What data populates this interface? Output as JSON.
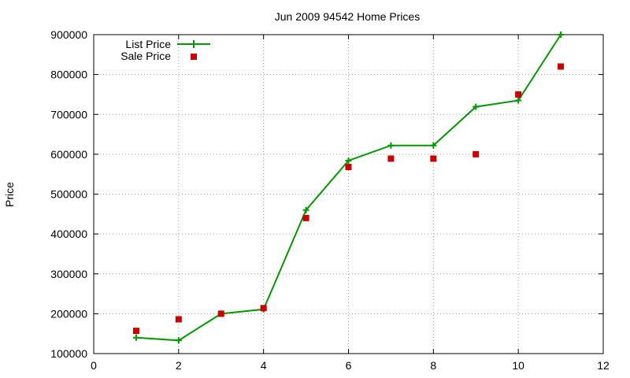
{
  "chart_data": {
    "type": "line",
    "title": "Jun 2009 94542 Home Prices",
    "xlabel": "",
    "ylabel": "Price",
    "xlim": [
      0,
      12
    ],
    "ylim": [
      100000,
      900000
    ],
    "xticks": [
      "0",
      "2",
      "4",
      "6",
      "8",
      "10",
      "12"
    ],
    "yticks": [
      "100000",
      "200000",
      "300000",
      "400000",
      "500000",
      "600000",
      "700000",
      "800000",
      "900000"
    ],
    "grid": true,
    "legend_position": "top-left",
    "series": [
      {
        "name": "List Price",
        "kind": "line-plus",
        "color": "#009900",
        "x": [
          1,
          2,
          3,
          4,
          5,
          6,
          7,
          8,
          9,
          10,
          11
        ],
        "y": [
          140000,
          133000,
          200000,
          211000,
          460000,
          584000,
          622000,
          622000,
          719000,
          735000,
          900000
        ]
      },
      {
        "name": "Sale Price",
        "kind": "square",
        "color": "#cc0000",
        "x": [
          1,
          2,
          3,
          4,
          5,
          6,
          7,
          8,
          9,
          10,
          11
        ],
        "y": [
          157000,
          186000,
          200000,
          214000,
          440000,
          568000,
          589000,
          589000,
          600000,
          750000,
          820000
        ]
      }
    ]
  }
}
